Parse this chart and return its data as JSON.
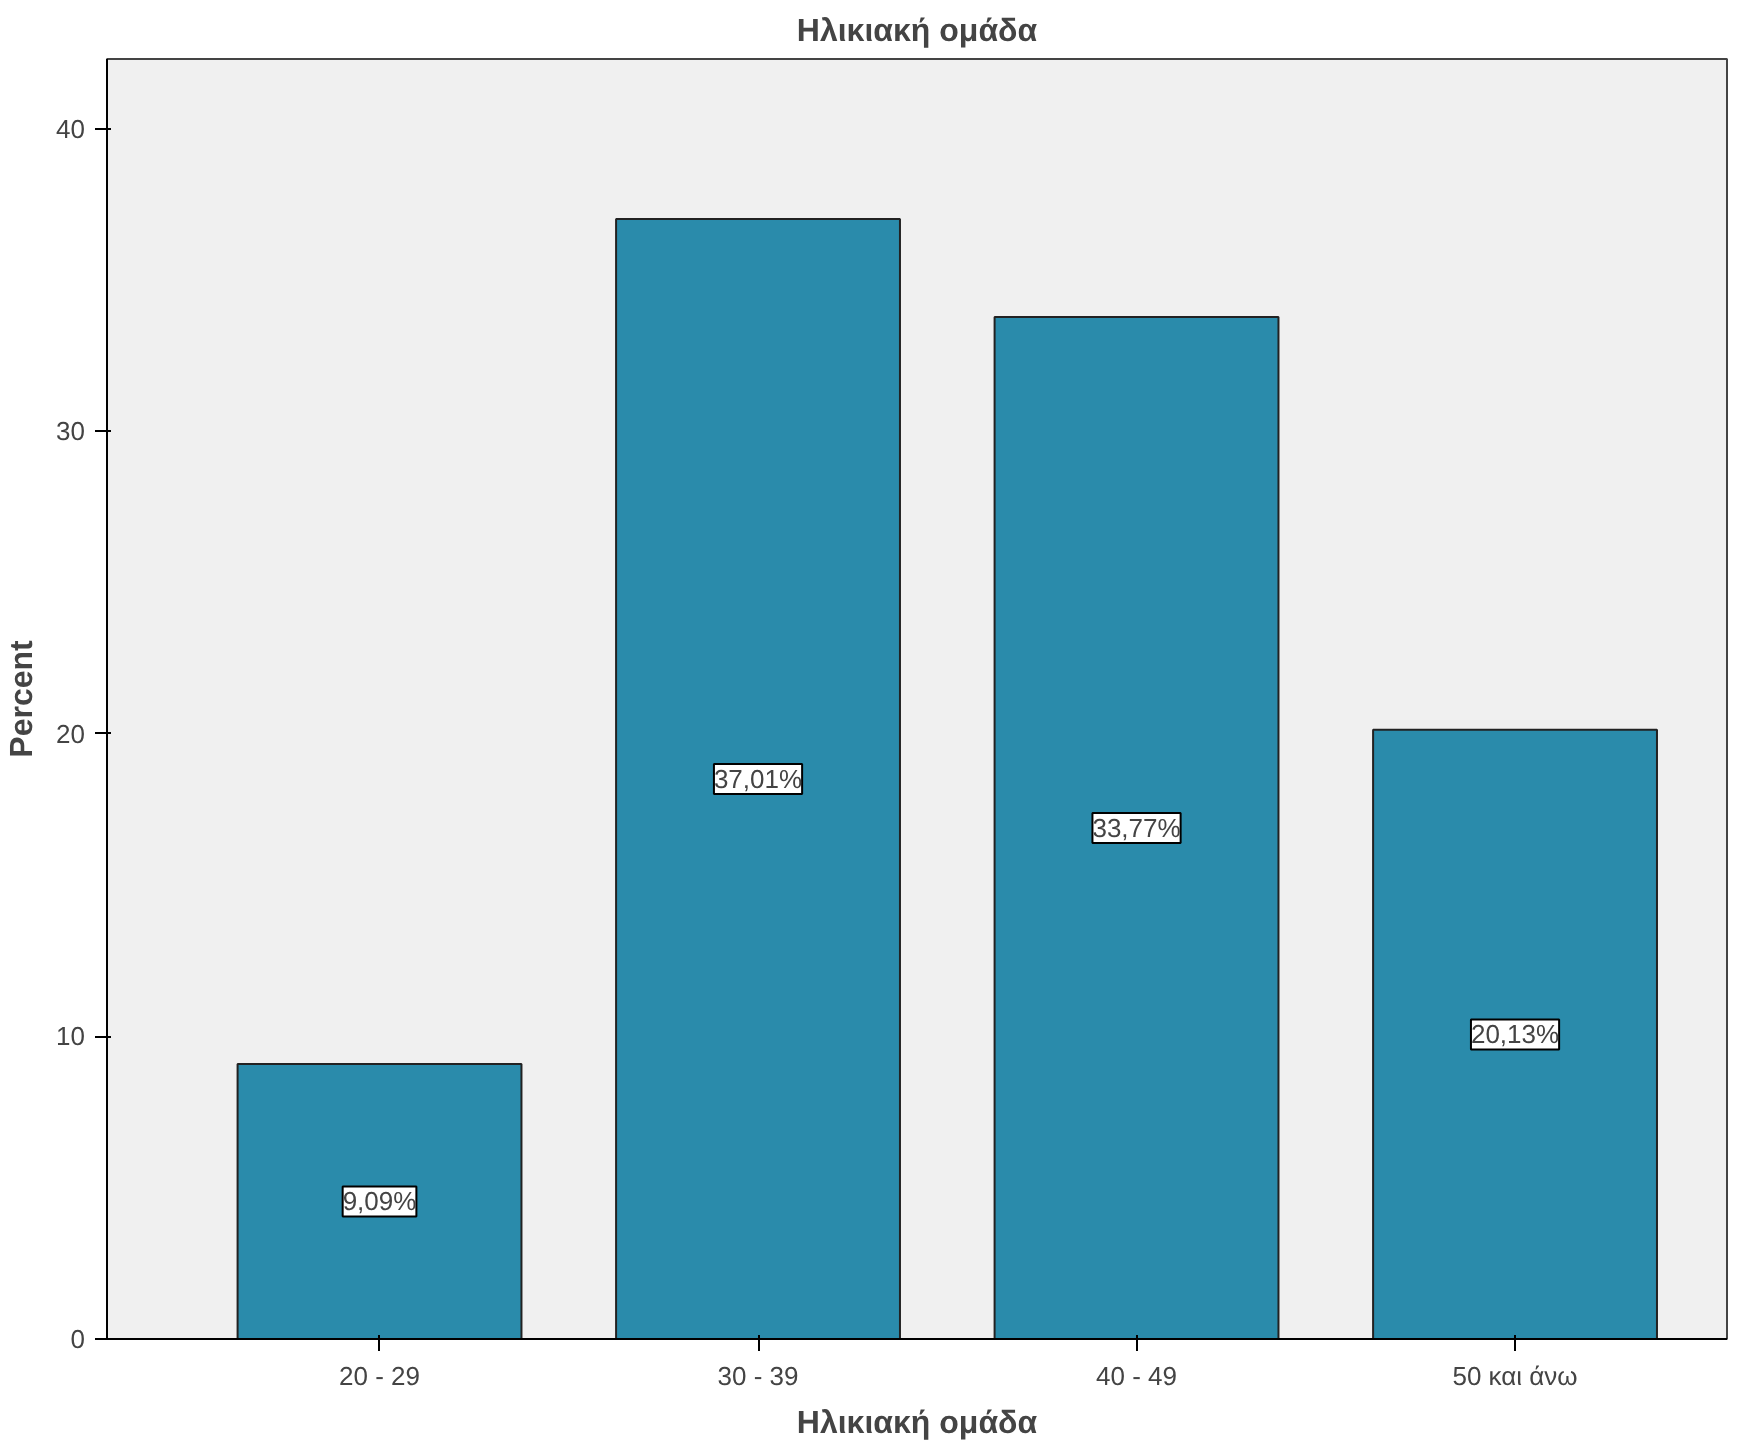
{
  "chart_data": {
    "type": "bar",
    "title": "Ηλικιακή ομάδα",
    "xlabel": "Ηλικιακή ομάδα",
    "ylabel": "Percent",
    "categories": [
      "20 - 29",
      "30 - 39",
      "40 - 49",
      "50 και άνω"
    ],
    "values": [
      9.09,
      37.01,
      33.77,
      20.13
    ],
    "value_labels": [
      "9,09%",
      "37,01%",
      "33,77%",
      "20,13%"
    ],
    "color": "#2a8bab",
    "ylim": [
      0,
      42.3
    ],
    "yticks": [
      0,
      10,
      20,
      30,
      40
    ],
    "grid": false
  }
}
